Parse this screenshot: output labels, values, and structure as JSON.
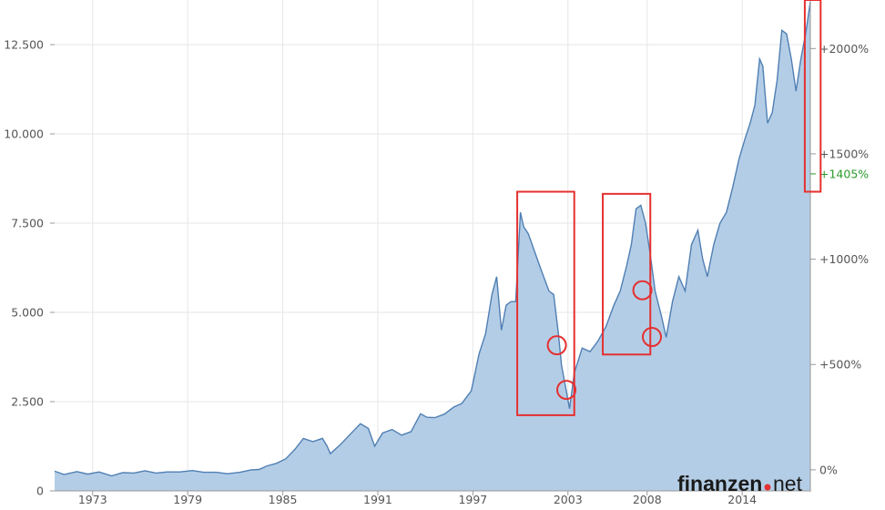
{
  "chart_data": {
    "type": "area",
    "title": "",
    "xlabel": "",
    "ylabel": "",
    "xlim": [
      1970.6,
      2018.3
    ],
    "ylim": [
      0,
      13750
    ],
    "x_ticks": [
      1973,
      1979,
      1985,
      1991,
      1997,
      2003,
      2008,
      2014
    ],
    "y_ticks": [
      0,
      2500,
      5000,
      7500,
      10000,
      12500
    ],
    "y_tick_labels": [
      "0",
      "2.500",
      "5.000",
      "7.500",
      "10.000",
      "12.500"
    ],
    "right_axis": {
      "ticks": [
        0,
        500,
        1000,
        1500,
        2000
      ],
      "labels": [
        "0%",
        "+500%",
        "+1000%",
        "+1500%",
        "+2000%"
      ],
      "highlight": {
        "value": 1405,
        "label": "+1405%",
        "color": "#2a9a2a"
      },
      "base_value": 590
    },
    "grid": true,
    "series": [
      {
        "color": "#4f7fb3",
        "fill": "#b4cde6",
        "x": [
          1970.6,
          1971.2,
          1972.0,
          1972.7,
          1973.4,
          1974.2,
          1974.9,
          1975.6,
          1976.3,
          1977.0,
          1977.7,
          1978.5,
          1979.3,
          1980.0,
          1980.8,
          1981.5,
          1982.3,
          1983.0,
          1983.5,
          1984.0,
          1984.6,
          1985.2,
          1985.8,
          1986.3,
          1986.9,
          1987.5,
          1987.8,
          1988.0,
          1988.6,
          1989.4,
          1989.9,
          1990.4,
          1990.8,
          1991.3,
          1991.9,
          1992.5,
          1993.1,
          1993.7,
          1994.1,
          1994.6,
          1995.2,
          1995.8,
          1996.3,
          1996.9,
          1997.4,
          1997.8,
          1998.2,
          1998.5,
          1998.8,
          1999.1,
          1999.4,
          1999.7,
          2000.0,
          2000.2,
          2000.5,
          2000.9,
          2001.3,
          2001.8,
          2002.1,
          2002.4,
          2002.6,
          2002.9,
          2003.1,
          2003.4,
          2003.9,
          2004.4,
          2004.9,
          2005.4,
          2005.9,
          2006.3,
          2006.7,
          2007.0,
          2007.3,
          2007.6,
          2007.9,
          2008.2,
          2008.5,
          2008.9,
          2009.2,
          2009.6,
          2010.0,
          2010.4,
          2010.8,
          2011.2,
          2011.5,
          2011.8,
          2012.2,
          2012.6,
          2013.0,
          2013.4,
          2013.8,
          2014.2,
          2014.5,
          2014.8,
          2015.1,
          2015.3,
          2015.6,
          2015.9,
          2016.2,
          2016.5,
          2016.8,
          2017.1,
          2017.4,
          2017.7,
          2018.0,
          2018.3
        ],
        "values": [
          550,
          460,
          540,
          470,
          530,
          420,
          510,
          500,
          560,
          500,
          530,
          530,
          570,
          520,
          520,
          480,
          520,
          590,
          600,
          700,
          770,
          900,
          1180,
          1470,
          1380,
          1470,
          1250,
          1040,
          1280,
          1650,
          1880,
          1750,
          1250,
          1620,
          1720,
          1560,
          1660,
          2160,
          2060,
          2050,
          2150,
          2350,
          2450,
          2800,
          3850,
          4400,
          5500,
          6000,
          4500,
          5200,
          5300,
          5300,
          7800,
          7400,
          7200,
          6700,
          6200,
          5600,
          5500,
          4400,
          3500,
          2800,
          2300,
          3300,
          4000,
          3900,
          4200,
          4600,
          5200,
          5600,
          6300,
          6900,
          7900,
          8000,
          7500,
          6600,
          5600,
          4900,
          4300,
          5300,
          6000,
          5600,
          6900,
          7300,
          6500,
          6000,
          6900,
          7500,
          7800,
          8500,
          9300,
          9900,
          10300,
          10800,
          12100,
          11900,
          10300,
          10600,
          11500,
          12900,
          12800,
          12100,
          11200,
          12100,
          12800,
          13700
        ]
      }
    ],
    "annotations": [
      {
        "type": "rect",
        "x0": 1999.8,
        "x1": 2003.4,
        "y0": 2120,
        "y1": 8380,
        "color": "#e53030"
      },
      {
        "type": "rect",
        "x0": 2005.2,
        "x1": 2008.2,
        "y0": 3820,
        "y1": 8320,
        "color": "#e53030"
      },
      {
        "type": "rect",
        "x0": 2017.95,
        "x1": 2018.95,
        "y0": 8380,
        "y1": 13750,
        "color": "#e53030"
      },
      {
        "type": "circle",
        "x": 2002.3,
        "y": 4080,
        "color": "#e53030"
      },
      {
        "type": "circle",
        "x": 2002.9,
        "y": 2830,
        "color": "#e53030"
      },
      {
        "type": "circle",
        "x": 2007.7,
        "y": 5620,
        "color": "#e53030"
      },
      {
        "type": "circle",
        "x": 2008.3,
        "y": 4310,
        "color": "#e53030"
      }
    ]
  },
  "watermark": {
    "brand": "finanzen",
    "suffix": "net",
    "dot_color": "#e53030"
  }
}
